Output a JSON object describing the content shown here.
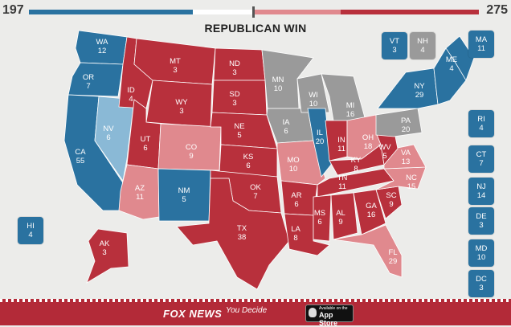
{
  "scores": {
    "dem": "197",
    "rep": "275"
  },
  "headline": "REPUBLICAN WIN",
  "colors": {
    "dem_solid": "#2a72a0",
    "dem_lean": "#8ab9d6",
    "rep_solid": "#b8303c",
    "rep_lean": "#e0898e",
    "tossup": "#9a9a9a",
    "background": "#ececea"
  },
  "states": [
    {
      "abbr": "WA",
      "votes": "12",
      "rating": "dem_solid"
    },
    {
      "abbr": "OR",
      "votes": "7",
      "rating": "dem_solid"
    },
    {
      "abbr": "CA",
      "votes": "55",
      "rating": "dem_solid"
    },
    {
      "abbr": "NV",
      "votes": "6",
      "rating": "dem_lean"
    },
    {
      "abbr": "ID",
      "votes": "4",
      "rating": "rep_solid"
    },
    {
      "abbr": "MT",
      "votes": "3",
      "rating": "rep_solid"
    },
    {
      "abbr": "WY",
      "votes": "3",
      "rating": "rep_solid"
    },
    {
      "abbr": "UT",
      "votes": "6",
      "rating": "rep_solid"
    },
    {
      "abbr": "AZ",
      "votes": "11",
      "rating": "rep_lean"
    },
    {
      "abbr": "CO",
      "votes": "9",
      "rating": "rep_lean"
    },
    {
      "abbr": "NM",
      "votes": "5",
      "rating": "dem_solid"
    },
    {
      "abbr": "ND",
      "votes": "3",
      "rating": "rep_solid"
    },
    {
      "abbr": "SD",
      "votes": "3",
      "rating": "rep_solid"
    },
    {
      "abbr": "NE",
      "votes": "5",
      "rating": "rep_solid"
    },
    {
      "abbr": "KS",
      "votes": "6",
      "rating": "rep_solid"
    },
    {
      "abbr": "OK",
      "votes": "7",
      "rating": "rep_solid"
    },
    {
      "abbr": "TX",
      "votes": "38",
      "rating": "rep_solid"
    },
    {
      "abbr": "MN",
      "votes": "10",
      "rating": "tossup"
    },
    {
      "abbr": "IA",
      "votes": "6",
      "rating": "tossup"
    },
    {
      "abbr": "MO",
      "votes": "10",
      "rating": "rep_lean"
    },
    {
      "abbr": "AR",
      "votes": "6",
      "rating": "rep_solid"
    },
    {
      "abbr": "LA",
      "votes": "8",
      "rating": "rep_solid"
    },
    {
      "abbr": "WI",
      "votes": "10",
      "rating": "tossup"
    },
    {
      "abbr": "IL",
      "votes": "20",
      "rating": "dem_solid"
    },
    {
      "abbr": "MI",
      "votes": "16",
      "rating": "tossup"
    },
    {
      "abbr": "IN",
      "votes": "11",
      "rating": "rep_solid"
    },
    {
      "abbr": "OH",
      "votes": "18",
      "rating": "rep_lean"
    },
    {
      "abbr": "KY",
      "votes": "8",
      "rating": "rep_solid"
    },
    {
      "abbr": "TN",
      "votes": "11",
      "rating": "rep_solid"
    },
    {
      "abbr": "MS",
      "votes": "6",
      "rating": "rep_solid"
    },
    {
      "abbr": "AL",
      "votes": "9",
      "rating": "rep_solid"
    },
    {
      "abbr": "GA",
      "votes": "16",
      "rating": "rep_solid"
    },
    {
      "abbr": "FL",
      "votes": "29",
      "rating": "rep_lean"
    },
    {
      "abbr": "SC",
      "votes": "9",
      "rating": "rep_solid"
    },
    {
      "abbr": "NC",
      "votes": "15",
      "rating": "rep_lean"
    },
    {
      "abbr": "VA",
      "votes": "13",
      "rating": "rep_lean"
    },
    {
      "abbr": "WV",
      "votes": "5",
      "rating": "rep_solid"
    },
    {
      "abbr": "PA",
      "votes": "20",
      "rating": "tossup"
    },
    {
      "abbr": "NY",
      "votes": "29",
      "rating": "dem_solid"
    },
    {
      "abbr": "ME",
      "votes": "4",
      "rating": "dem_solid"
    },
    {
      "abbr": "AK",
      "votes": "3",
      "rating": "rep_solid"
    },
    {
      "abbr": "HI",
      "votes": "4",
      "rating": "dem_solid"
    }
  ],
  "callouts": [
    {
      "abbr": "VT",
      "votes": "3",
      "rating": "dem_solid"
    },
    {
      "abbr": "NH",
      "votes": "4",
      "rating": "tossup"
    },
    {
      "abbr": "MA",
      "votes": "11",
      "rating": "dem_solid"
    },
    {
      "abbr": "RI",
      "votes": "4",
      "rating": "dem_solid"
    },
    {
      "abbr": "CT",
      "votes": "7",
      "rating": "dem_solid"
    },
    {
      "abbr": "NJ",
      "votes": "14",
      "rating": "dem_solid"
    },
    {
      "abbr": "DE",
      "votes": "3",
      "rating": "dem_solid"
    },
    {
      "abbr": "MD",
      "votes": "10",
      "rating": "dem_solid"
    },
    {
      "abbr": "DC",
      "votes": "3",
      "rating": "dem_solid"
    },
    {
      "abbr": "HI",
      "votes": "4",
      "rating": "dem_solid"
    }
  ],
  "footer": {
    "brand": "FOX NEWS",
    "brand_sub": "You Decide",
    "store_small": "Available on the",
    "store_big": "App Store"
  }
}
